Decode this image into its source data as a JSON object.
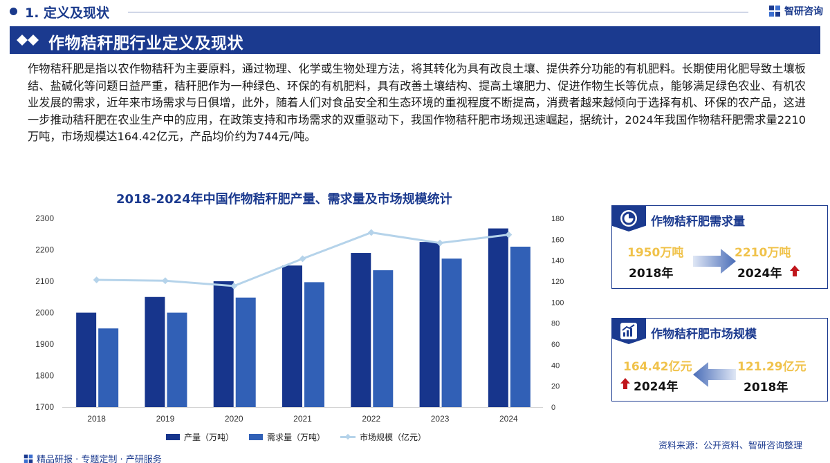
{
  "header": {
    "section": "1. 定义及现状",
    "brand": "智研咨询"
  },
  "banner": {
    "title": "作物秸秆肥行业定义及现状"
  },
  "paragraph": "作物秸秆肥是指以农作物秸秆为主要原料，通过物理、化学或生物处理方法，将其转化为具有改良土壤、提供养分功能的有机肥料。长期使用化肥导致土壤板结、盐碱化等问题日益严重，秸秆肥作为一种绿色、环保的有机肥料，具有改善土壤结构、提高土壤肥力、促进作物生长等优点，能够满足绿色农业、有机农业发展的需求，近年来市场需求与日俱增，此外，随着人们对食品安全和生态环境的重视程度不断提高，消费者越来越倾向于选择有机、环保的农产品，这进一步推动秸秆肥在农业生产中的应用，在政策支持和市场需求的双重驱动下，我国作物秸秆肥市场规迅速崛起，据统计，2024年我国作物秸秆肥需求量2210万吨，市场规模达164.42亿元，产品均价约为744元/吨。",
  "chart_data": {
    "type": "bar",
    "title": "2018-2024年中国作物秸秆肥产量、需求量及市场规模统计",
    "categories": [
      "2018",
      "2019",
      "2020",
      "2021",
      "2022",
      "2023",
      "2024"
    ],
    "series": [
      {
        "name": "产量（万吨）",
        "type": "bar",
        "axis": "left",
        "color": "#17358c",
        "values": [
          2000,
          2050,
          2100,
          2150,
          2190,
          2225,
          2268
        ]
      },
      {
        "name": "需求量（万吨）",
        "type": "bar",
        "axis": "left",
        "color": "#3160b6",
        "values": [
          1950,
          2000,
          2048,
          2097,
          2135,
          2172,
          2210
        ]
      },
      {
        "name": "市场规模（亿元）",
        "type": "line",
        "axis": "right",
        "color": "#b5d3ea",
        "values": [
          121.29,
          120.5,
          115.5,
          141.5,
          166.5,
          156.5,
          164.42
        ]
      }
    ],
    "y_left": {
      "ylim": [
        1700,
        2300
      ],
      "ticks": [
        "1700",
        "1800",
        "1900",
        "2000",
        "2100",
        "2200",
        "2300"
      ]
    },
    "y_right": {
      "ylim": [
        0,
        180
      ],
      "ticks": [
        "0",
        "20",
        "40",
        "60",
        "80",
        "100",
        "120",
        "140",
        "160",
        "180"
      ]
    },
    "legend_position": "bottom",
    "grid": false
  },
  "legend": {
    "production": "产量（万吨）",
    "demand": "需求量（万吨）",
    "market": "市场规模（亿元）"
  },
  "card_demand": {
    "title": "作物秸秆肥需求量",
    "from_value": "1950万吨",
    "from_year": "2018年",
    "to_value": "2210万吨",
    "to_year": "2024年"
  },
  "card_market": {
    "title": "作物秸秆肥市场规模",
    "new_value": "164.42亿元",
    "new_year": "2024年",
    "old_value": "121.29亿元",
    "old_year": "2018年"
  },
  "footer": {
    "source": "资料来源：公开资料、智研咨询整理",
    "services": "精品研报 · 专题定制 · 产研服务"
  },
  "colors": {
    "navy": "#1b3a8f",
    "gold": "#f0c24a",
    "red": "#c0151b"
  }
}
